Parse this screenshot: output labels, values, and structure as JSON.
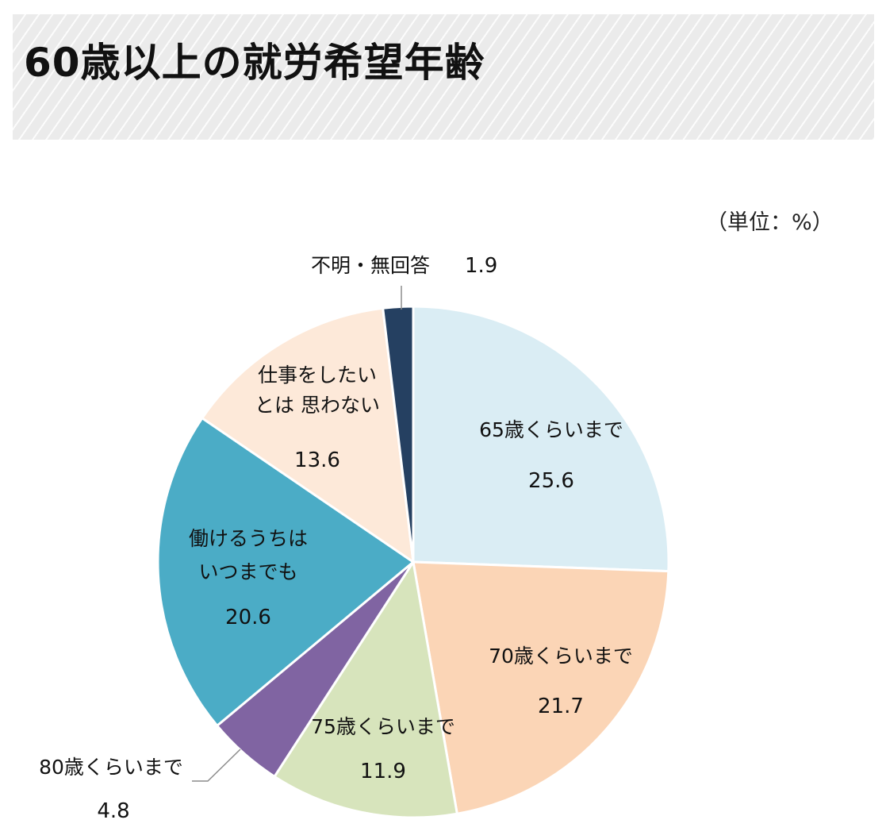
{
  "header": {
    "title": "60歳以上の就労希望年齢"
  },
  "unit_label": "（単位：%）",
  "chart_data": {
    "type": "pie",
    "title": "60歳以上の就労希望年齢",
    "unit": "%",
    "start": "12 o'clock",
    "direction": "clockwise",
    "slices": [
      {
        "label_lines": [
          "65歳くらいまで"
        ],
        "value": 25.6,
        "value_text": "25.6",
        "color": "#daedf4"
      },
      {
        "label_lines": [
          "70歳くらいまで"
        ],
        "value": 21.7,
        "value_text": "21.7",
        "color": "#fbd5b6"
      },
      {
        "label_lines": [
          "75歳くらいまで"
        ],
        "value": 11.9,
        "value_text": "11.9",
        "color": "#d7e4bc"
      },
      {
        "label_lines": [
          "80歳くらいまで"
        ],
        "value": 4.8,
        "value_text": "4.8",
        "color": "#8064a2"
      },
      {
        "label_lines": [
          "働けるうちは",
          "いつまでも"
        ],
        "value": 20.6,
        "value_text": "20.6",
        "color": "#4bacc6"
      },
      {
        "label_lines": [
          "仕事をしたい",
          "とは 思わない"
        ],
        "value": 13.6,
        "value_text": "13.6",
        "color": "#fde9d9"
      },
      {
        "label_lines": [
          "不明・無回答"
        ],
        "value": 1.9,
        "value_text": "1.9",
        "color": "#254061"
      }
    ]
  }
}
